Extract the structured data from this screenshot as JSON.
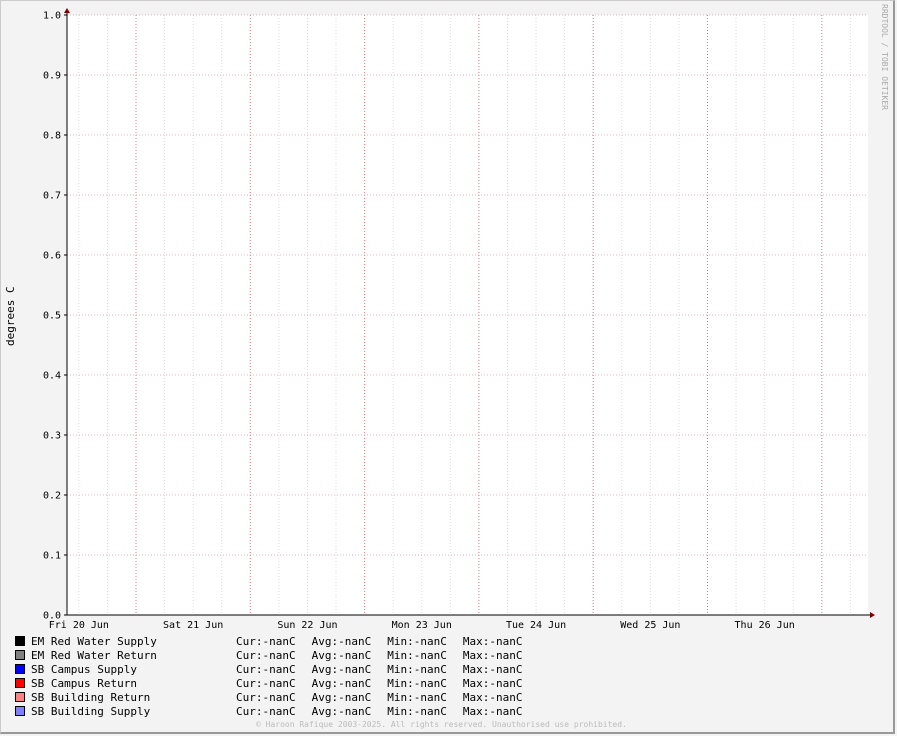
{
  "chart_data": {
    "type": "line",
    "title": "",
    "ylabel": "degrees C",
    "ylim": [
      0.0,
      1.0
    ],
    "yticks": [
      "0.0",
      "0.1",
      "0.2",
      "0.3",
      "0.4",
      "0.5",
      "0.6",
      "0.7",
      "0.8",
      "0.9",
      "1.0"
    ],
    "xticks": [
      "Fri 20 Jun",
      "Sat 21 Jun",
      "Sun 22 Jun",
      "Mon 23 Jun",
      "Tue 24 Jun",
      "Wed 25 Jun",
      "Thu 26 Jun"
    ],
    "grid": true,
    "legend_placement": "bottom",
    "series": [
      {
        "name": "EM Red Water Supply",
        "color": "#000000",
        "cur": "-nanC",
        "avg": "-nanC",
        "min": "-nanC",
        "max": "-nanC",
        "values": []
      },
      {
        "name": "EM Red Water Return",
        "color": "#808080",
        "cur": "-nanC",
        "avg": "-nanC",
        "min": "-nanC",
        "max": "-nanC",
        "values": []
      },
      {
        "name": "SB Campus Supply",
        "color": "#0000ff",
        "cur": "-nanC",
        "avg": "-nanC",
        "min": "-nanC",
        "max": "-nanC",
        "values": []
      },
      {
        "name": "SB Campus Return",
        "color": "#ff0000",
        "cur": "-nanC",
        "avg": "-nanC",
        "min": "-nanC",
        "max": "-nanC",
        "values": []
      },
      {
        "name": "SB Building Return",
        "color": "#ff8080",
        "cur": "-nanC",
        "avg": "-nanC",
        "min": "-nanC",
        "max": "-nanC",
        "values": []
      },
      {
        "name": "SB Building Supply",
        "color": "#8080ff",
        "cur": "-nanC",
        "avg": "-nanC",
        "min": "-nanC",
        "max": "-nanC",
        "values": []
      }
    ],
    "labels": {
      "cur": "Cur:",
      "avg": "Avg:",
      "min": "Min:",
      "max": "Max:"
    }
  },
  "watermark": "RRDTOOL / TOBI OETIKER",
  "footer": "© Haroon Rafique 2003-2025. All rights reserved. Unauthorised use prohibited."
}
